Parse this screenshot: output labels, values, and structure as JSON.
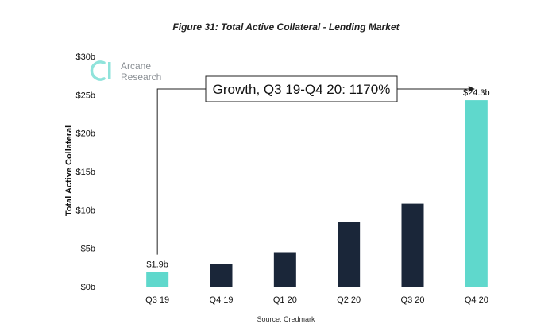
{
  "colors": {
    "highlight": "#5fd8cc",
    "bar": "#1a2639",
    "logo_accent": "#8fe3db",
    "text": "#111111"
  },
  "logo": {
    "line1": "Arcane",
    "line2": "Research",
    "icon": "arcane-research-logo-icon"
  },
  "annotation": {
    "text": "Growth, Q3 19-Q4 20: 1170%",
    "from_category": "Q3 19",
    "to_category": "Q4 20"
  },
  "chart_data": {
    "type": "bar",
    "title": "Figure 31: Total Active Collateral - Lending Market",
    "ylabel": "Total Active Collateral",
    "xlabel": "",
    "source": "Source: Credmark",
    "ylim": [
      0,
      30
    ],
    "yticks": [
      {
        "value": 0,
        "label": "$0b"
      },
      {
        "value": 5,
        "label": "$5b"
      },
      {
        "value": 10,
        "label": "$10b"
      },
      {
        "value": 15,
        "label": "$15b"
      },
      {
        "value": 20,
        "label": "$20b"
      },
      {
        "value": 25,
        "label": "$25b"
      },
      {
        "value": 30,
        "label": "$30b"
      }
    ],
    "grid": false,
    "categories": [
      "Q3 19",
      "Q4 19",
      "Q1 20",
      "Q2 20",
      "Q3 20",
      "Q4 20"
    ],
    "values": [
      1.9,
      3.0,
      4.5,
      8.4,
      10.8,
      24.3
    ],
    "highlighted": [
      true,
      false,
      false,
      false,
      false,
      true
    ],
    "data_labels": [
      "$1.9b",
      "",
      "",
      "",
      "",
      "$24.3b"
    ]
  }
}
